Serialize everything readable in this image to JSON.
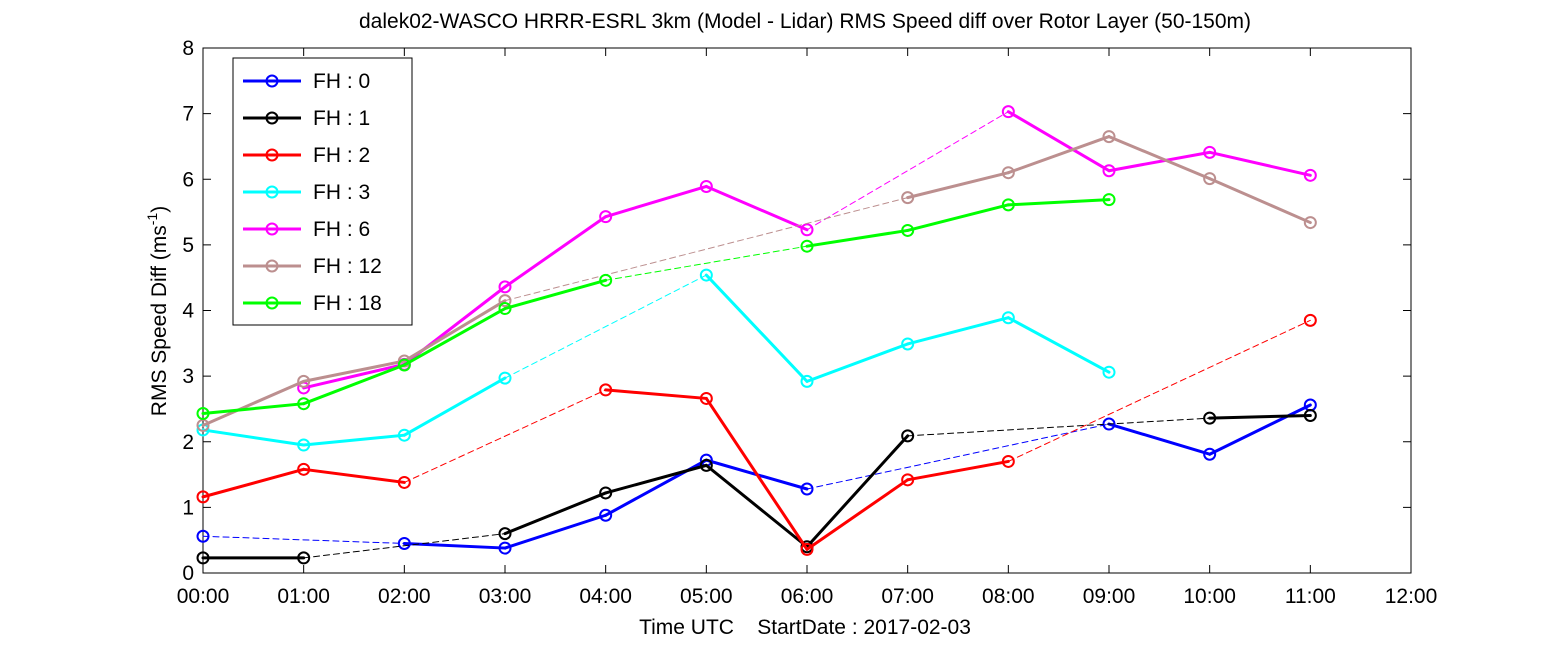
{
  "chart_data": {
    "type": "line",
    "title": "dalek02-WASCO HRRR-ESRL 3km (Model - Lidar) RMS Speed diff over Rotor Layer (50-150m)",
    "xlabel": "Time UTC    StartDate : 2017-02-03",
    "ylabel": "RMS Speed Diff (ms",
    "ylabel_sup": "-1",
    "ylabel_close": ")",
    "x_ticks": [
      "00:00",
      "01:00",
      "02:00",
      "03:00",
      "04:00",
      "05:00",
      "06:00",
      "07:00",
      "08:00",
      "09:00",
      "10:00",
      "11:00",
      "12:00"
    ],
    "y_ticks": [
      "0",
      "1",
      "2",
      "3",
      "4",
      "5",
      "6",
      "7",
      "8"
    ],
    "xlim": [
      0,
      12
    ],
    "ylim": [
      0,
      8
    ],
    "grid": false,
    "legend_position": "top-left",
    "series": [
      {
        "name": "FH : 0",
        "color": "#0000ff",
        "x": [
          0,
          1,
          2,
          3,
          4,
          5,
          6,
          7,
          8,
          9,
          10,
          11
        ],
        "y": [
          0.56,
          null,
          0.45,
          0.38,
          0.88,
          1.72,
          1.28,
          null,
          null,
          2.27,
          1.81,
          2.56
        ]
      },
      {
        "name": "FH : 1",
        "color": "#000000",
        "x": [
          0,
          1,
          2,
          3,
          4,
          5,
          6,
          7,
          8,
          9,
          10,
          11
        ],
        "y": [
          0.23,
          0.23,
          null,
          0.6,
          1.22,
          1.64,
          0.4,
          2.09,
          null,
          null,
          2.36,
          2.4
        ]
      },
      {
        "name": "FH : 2",
        "color": "#ff0000",
        "x": [
          0,
          1,
          2,
          3,
          4,
          5,
          6,
          7,
          8,
          9,
          10,
          11
        ],
        "y": [
          1.16,
          1.58,
          1.38,
          null,
          2.79,
          2.66,
          0.36,
          1.42,
          1.7,
          null,
          null,
          3.85
        ]
      },
      {
        "name": "FH : 3",
        "color": "#00ffff",
        "x": [
          0,
          1,
          2,
          3,
          4,
          5,
          6,
          7,
          8,
          9,
          10,
          11
        ],
        "y": [
          2.18,
          1.95,
          2.1,
          2.97,
          null,
          4.54,
          2.92,
          3.49,
          3.89,
          3.06,
          null,
          null
        ]
      },
      {
        "name": "FH : 6",
        "color": "#ff00ff",
        "x": [
          0,
          1,
          2,
          3,
          4,
          5,
          6,
          7,
          8,
          9,
          10,
          11
        ],
        "y": [
          null,
          2.82,
          3.18,
          4.36,
          5.43,
          5.89,
          5.23,
          null,
          7.03,
          6.13,
          6.41,
          6.06
        ]
      },
      {
        "name": "FH : 12",
        "color": "#bc8f8f",
        "x": [
          0,
          1,
          2,
          3,
          4,
          5,
          6,
          7,
          8,
          9,
          10,
          11
        ],
        "y": [
          2.25,
          2.92,
          3.23,
          4.15,
          null,
          null,
          null,
          5.72,
          6.1,
          6.65,
          6.01,
          5.34
        ]
      },
      {
        "name": "FH : 18",
        "color": "#00ff00",
        "x": [
          0,
          1,
          2,
          3,
          4,
          5,
          6,
          7,
          8,
          9,
          10,
          11
        ],
        "y": [
          2.43,
          2.58,
          3.17,
          4.03,
          4.46,
          null,
          4.98,
          5.22,
          5.61,
          5.69,
          null,
          null
        ]
      }
    ]
  }
}
